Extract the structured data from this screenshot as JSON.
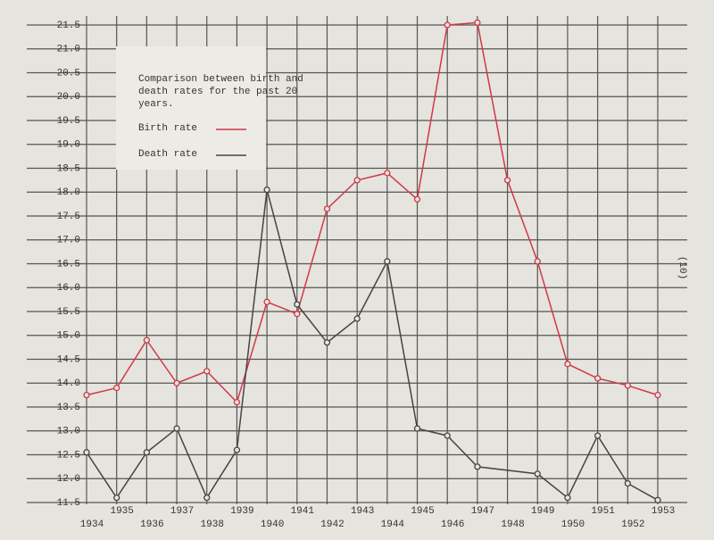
{
  "chart_data": {
    "type": "line",
    "legend_title": "Comparison between birth and death rates for the past 20 years.",
    "page_number": "(10)",
    "xlim": [
      1934,
      1953
    ],
    "xticks": [
      1934,
      1935,
      1936,
      1937,
      1938,
      1939,
      1940,
      1941,
      1942,
      1943,
      1944,
      1945,
      1946,
      1947,
      1948,
      1949,
      1950,
      1951,
      1952,
      1953
    ],
    "ylim": [
      11.5,
      21.5
    ],
    "yticks": [
      11.5,
      {
        "value": 12,
        "label": "12.0"
      },
      12.5,
      {
        "value": 13,
        "label": "13.0"
      },
      13.5,
      {
        "value": 14,
        "label": "14.0"
      },
      14.5,
      {
        "value": 15,
        "label": "15.0"
      },
      15.5,
      {
        "value": 16,
        "label": "16.0"
      },
      16.5,
      {
        "value": 17,
        "label": "17.0"
      },
      17.5,
      {
        "value": 18,
        "label": "18.0"
      },
      18.5,
      {
        "value": 19,
        "label": "19.0"
      },
      19.5,
      {
        "value": 20,
        "label": "20.0"
      },
      20.5,
      {
        "value": 21,
        "label": "21.0"
      },
      21.5
    ],
    "grid": true,
    "series": [
      {
        "name": "Birth rate",
        "color": "#d0384a",
        "x": [
          1934,
          1935,
          1936,
          1937,
          1938,
          1939,
          1940,
          1941,
          1942,
          1943,
          1944,
          1945,
          1946,
          1947,
          1948,
          1949,
          1950,
          1951,
          1952,
          1953
        ],
        "values": [
          13.75,
          13.9,
          14.9,
          14.0,
          14.25,
          13.6,
          15.7,
          15.45,
          17.65,
          18.25,
          18.4,
          17.85,
          21.5,
          21.55,
          18.25,
          16.55,
          14.4,
          14.1,
          13.95,
          13.75
        ]
      },
      {
        "name": "Death rate",
        "color": "#444444",
        "x": [
          1934,
          1935,
          1936,
          1937,
          1938,
          1939,
          1940,
          1941,
          1942,
          1943,
          1944,
          1945,
          1946,
          1947,
          1949,
          1950,
          1951,
          1952,
          1953
        ],
        "values": [
          12.55,
          11.6,
          12.55,
          13.05,
          11.6,
          12.6,
          18.05,
          15.65,
          14.85,
          15.35,
          16.55,
          13.05,
          12.9,
          12.25,
          12.1,
          11.6,
          12.9,
          11.9,
          11.55
        ]
      }
    ]
  }
}
